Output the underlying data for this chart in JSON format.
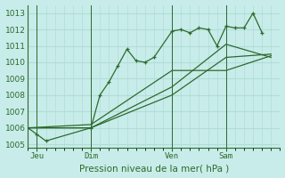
{
  "background_color": "#c8ece9",
  "grid_color": "#b0ddd8",
  "line_color": "#2d6a2d",
  "title": "Pression niveau de la mer( hPa )",
  "ylim": [
    1004.8,
    1013.5
  ],
  "yticks": [
    1005,
    1006,
    1007,
    1008,
    1009,
    1010,
    1011,
    1012,
    1013
  ],
  "xlim": [
    0,
    28
  ],
  "day_labels": [
    "Jeu",
    "Dim",
    "Ven",
    "Sam"
  ],
  "day_positions": [
    1,
    7,
    16,
    22
  ],
  "vline_positions": [
    1,
    7,
    16,
    22
  ],
  "series1_x": [
    0,
    1,
    2,
    7,
    8,
    9,
    10,
    11,
    12,
    13,
    14,
    16,
    17,
    18,
    19,
    20,
    21,
    22,
    23,
    24,
    25,
    26
  ],
  "series1_y": [
    1006.0,
    1005.6,
    1005.2,
    1006.0,
    1008.0,
    1008.8,
    1009.8,
    1010.8,
    1010.1,
    1010.0,
    1010.3,
    1011.9,
    1012.0,
    1011.8,
    1012.1,
    1012.0,
    1011.0,
    1012.2,
    1012.1,
    1012.1,
    1013.0,
    1011.8
  ],
  "series2_x": [
    0,
    7,
    16,
    22,
    27
  ],
  "series2_y": [
    1006.0,
    1006.0,
    1008.0,
    1010.3,
    1010.5
  ],
  "series3_x": [
    0,
    7,
    16,
    22,
    27
  ],
  "series3_y": [
    1006.0,
    1006.0,
    1008.5,
    1011.1,
    1010.3
  ],
  "series4_x": [
    0,
    7,
    16,
    22,
    27
  ],
  "series4_y": [
    1006.0,
    1006.2,
    1009.5,
    1009.5,
    1010.4
  ]
}
